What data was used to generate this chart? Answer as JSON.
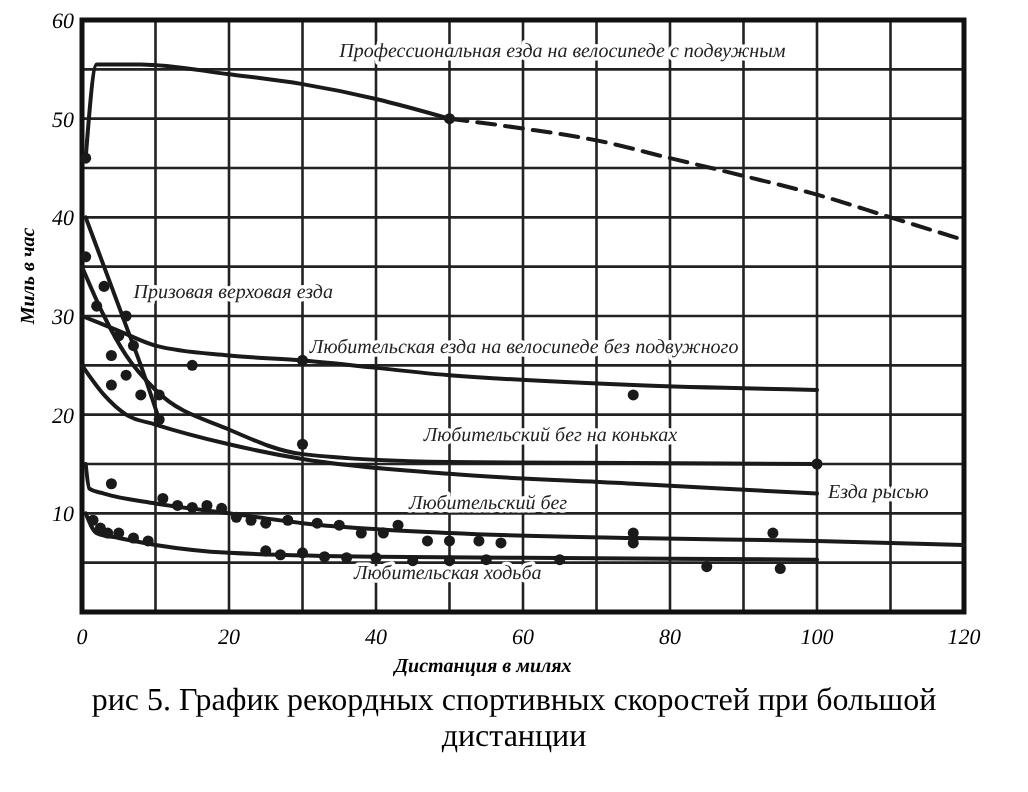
{
  "chart_data": {
    "type": "line",
    "xlabel": "Дистанция в милях",
    "ylabel": "Миль в час",
    "annotations": [
      "рис 5. График рекордных спортивных скоростей при большой дистанции"
    ],
    "xlim": [
      0,
      120
    ],
    "ylim": [
      0,
      60
    ],
    "xticks": [
      0,
      {
        "value": 10,
        "label": null
      },
      20,
      {
        "value": 30,
        "label": null
      },
      40,
      {
        "value": 50,
        "label": null
      },
      60,
      {
        "value": 70,
        "label": null
      },
      80,
      {
        "value": 90,
        "label": null
      },
      100,
      {
        "value": 110,
        "label": null
      },
      120
    ],
    "yticks": [
      {
        "value": 0,
        "label": null
      },
      {
        "value": 5,
        "label": null
      },
      10,
      {
        "value": 15,
        "label": null
      },
      20,
      {
        "value": 25,
        "label": null
      },
      30,
      {
        "value": 35,
        "label": null
      },
      40,
      {
        "value": 45,
        "label": null
      },
      50,
      {
        "value": 55,
        "label": null
      },
      60
    ],
    "grid": true,
    "marker": "none",
    "series": [
      {
        "name": "Профессиональная езда на велосипеде с подвужным",
        "color": "#1a1a1a",
        "line_style": "solid",
        "x": [
          0.5,
          2,
          8,
          20,
          30,
          40,
          50
        ],
        "values": [
          46,
          55.5,
          55.5,
          54.5,
          53.5,
          52,
          50
        ]
      },
      {
        "color": "#1a1a1a",
        "line_style": "dashed",
        "x": [
          50,
          60,
          70,
          80,
          90,
          100,
          110,
          120
        ],
        "values": [
          50,
          49,
          47.8,
          46,
          44.2,
          42.3,
          40,
          37.7
        ]
      },
      {
        "name": "Призовая верховая езда",
        "color": "#1a1a1a",
        "line_style": "solid",
        "x": [
          0.5,
          3,
          6,
          8,
          10.5
        ],
        "values": [
          40,
          35,
          29,
          25,
          19.5
        ]
      },
      {
        "name": "Любительская езда на велосипеде без подвужного",
        "color": "#1a1a1a",
        "line_style": "solid",
        "x": [
          0,
          5,
          10,
          20,
          30,
          50,
          75,
          100
        ],
        "values": [
          30,
          28.5,
          27,
          26,
          25.5,
          24,
          23,
          22.5
        ]
      },
      {
        "name": "Любительский бег на коньках",
        "color": "#1a1a1a",
        "line_style": "solid",
        "x": [
          0,
          3,
          6,
          10,
          20,
          30,
          50,
          75,
          100
        ],
        "values": [
          35,
          30,
          26,
          22.5,
          18.5,
          16,
          15.2,
          15.1,
          15
        ]
      },
      {
        "name": "Езда рысью",
        "color": "#1a1a1a",
        "line_style": "solid",
        "x": [
          0,
          3,
          6,
          10,
          20,
          30,
          50,
          75,
          100
        ],
        "values": [
          25,
          22,
          20,
          19,
          17,
          15.5,
          14,
          13,
          12
        ]
      },
      {
        "name": "Любительский бег",
        "color": "#1a1a1a",
        "line_style": "solid",
        "x": [
          0.5,
          1,
          3,
          10,
          20,
          30,
          50,
          75,
          100,
          120
        ],
        "values": [
          15,
          12.5,
          12,
          11,
          10,
          9,
          8,
          7.5,
          7.2,
          6.8
        ]
      },
      {
        "name": "Любительская ходьба",
        "color": "#1a1a1a",
        "line_style": "solid",
        "x": [
          0.5,
          2,
          5,
          10,
          20,
          40,
          60,
          100
        ],
        "values": [
          10,
          8,
          7.5,
          6.8,
          6,
          5.6,
          5.5,
          5.3
        ]
      },
      {
        "type": "scatter",
        "color": "#1a1a1a",
        "marker": "circle",
        "x": [
          0.5,
          50,
          0.5,
          2,
          3,
          4,
          5,
          6,
          7,
          4,
          6,
          8,
          10.5,
          10.5,
          15,
          30,
          75,
          30,
          100
        ],
        "values": [
          46,
          50,
          36,
          31,
          33,
          26,
          28,
          30,
          27,
          23,
          24,
          22,
          22,
          19.5,
          25,
          25.5,
          22,
          17,
          15
        ]
      },
      {
        "type": "scatter",
        "color": "#1a1a1a",
        "marker": "circle",
        "x": [
          1.5,
          2.5,
          3.5,
          5,
          7,
          9,
          25,
          27,
          30,
          33,
          36,
          40,
          45,
          50,
          55,
          65,
          85,
          95,
          4,
          11,
          13,
          15,
          17,
          19,
          21,
          23,
          25,
          28,
          32,
          35,
          38,
          41,
          43,
          47,
          50,
          54,
          57,
          75,
          75,
          94
        ],
        "values": [
          9.3,
          8.5,
          8,
          8,
          7.5,
          7.2,
          6.2,
          5.8,
          6,
          5.6,
          5.5,
          5.5,
          5.2,
          5.2,
          5.3,
          5.3,
          4.6,
          4.4,
          13,
          11.5,
          10.8,
          10.6,
          10.8,
          10.5,
          9.6,
          9.3,
          9,
          9.3,
          9,
          8.8,
          8,
          8,
          8.8,
          7.2,
          7.2,
          7.2,
          7,
          8,
          7,
          8
        ]
      }
    ]
  }
}
